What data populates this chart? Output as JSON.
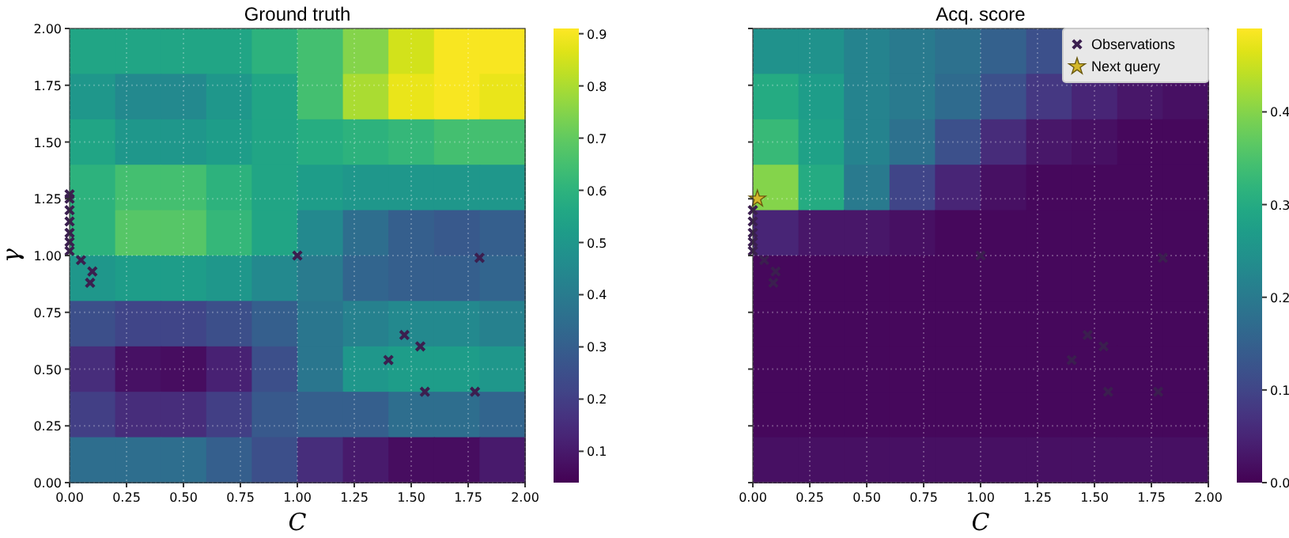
{
  "chart_data": [
    {
      "type": "heatmap",
      "title": "Ground truth",
      "xlabel": "C",
      "ylabel": "γ",
      "xlim": [
        0,
        2
      ],
      "ylim": [
        0,
        2
      ],
      "xticks": [
        {
          "value": 0,
          "label": "0.00"
        },
        {
          "value": 0.25,
          "label": "0.25"
        },
        {
          "value": 0.5,
          "label": "0.50"
        },
        {
          "value": 0.75,
          "label": "0.75"
        },
        {
          "value": 1,
          "label": "1.00"
        },
        {
          "value": 1.25,
          "label": "1.25"
        },
        {
          "value": 1.5,
          "label": "1.50"
        },
        {
          "value": 1.75,
          "label": "1.75"
        },
        {
          "value": 2,
          "label": "2.00"
        }
      ],
      "yticks": [
        {
          "value": 0,
          "label": "0.00"
        },
        {
          "value": 0.25,
          "label": "0.25"
        },
        {
          "value": 0.5,
          "label": "0.50"
        },
        {
          "value": 0.75,
          "label": "0.75"
        },
        {
          "value": 1,
          "label": "1.00"
        },
        {
          "value": 1.25,
          "label": "1.25"
        },
        {
          "value": 1.5,
          "label": "1.50"
        },
        {
          "value": 1.75,
          "label": "1.75"
        },
        {
          "value": 2,
          "label": "2.00"
        }
      ],
      "grid": true,
      "clim": [
        0.04,
        0.91
      ],
      "cticks": [
        0.1,
        0.2,
        0.3,
        0.4,
        0.5,
        0.6,
        0.7,
        0.8,
        0.9
      ],
      "cells": [
        [
          0.55,
          0.55,
          0.55,
          0.55,
          0.6,
          0.65,
          0.75,
          0.85,
          0.9,
          0.9
        ],
        [
          0.5,
          0.45,
          0.45,
          0.5,
          0.55,
          0.65,
          0.8,
          0.88,
          0.9,
          0.88
        ],
        [
          0.55,
          0.5,
          0.5,
          0.52,
          0.55,
          0.58,
          0.6,
          0.62,
          0.65,
          0.65
        ],
        [
          0.6,
          0.65,
          0.65,
          0.6,
          0.55,
          0.52,
          0.5,
          0.5,
          0.5,
          0.5
        ],
        [
          0.6,
          0.68,
          0.68,
          0.62,
          0.55,
          0.45,
          0.35,
          0.3,
          0.28,
          0.3
        ],
        [
          0.5,
          0.52,
          0.52,
          0.5,
          0.45,
          0.4,
          0.32,
          0.3,
          0.3,
          0.32
        ],
        [
          0.25,
          0.22,
          0.22,
          0.25,
          0.3,
          0.38,
          0.42,
          0.45,
          0.45,
          0.42
        ],
        [
          0.15,
          0.08,
          0.07,
          0.12,
          0.25,
          0.38,
          0.5,
          0.52,
          0.52,
          0.5
        ],
        [
          0.2,
          0.15,
          0.15,
          0.2,
          0.28,
          0.3,
          0.3,
          0.35,
          0.35,
          0.32
        ],
        [
          0.35,
          0.35,
          0.35,
          0.3,
          0.25,
          0.15,
          0.1,
          0.07,
          0.07,
          0.1
        ]
      ],
      "series": [
        {
          "type": "scatter",
          "marker": "cross",
          "color": "#3b1f4f",
          "x": [
            0,
            0,
            0,
            0,
            0,
            0,
            0,
            0.05,
            0.1,
            0.09,
            1,
            1.8,
            1.47,
            1.54,
            1.4,
            1.56,
            1.78
          ],
          "values": [
            1.02,
            1.06,
            1.1,
            1.15,
            1.2,
            1.25,
            1.27,
            0.98,
            0.93,
            0.88,
            1,
            0.99,
            0.65,
            0.6,
            0.54,
            0.4,
            0.4
          ]
        }
      ]
    },
    {
      "type": "heatmap",
      "title": "Acq. score",
      "xlabel": "C",
      "ylim": [
        0,
        2
      ],
      "xlim": [
        0,
        2
      ],
      "tick_labels": "x",
      "xticks": [
        {
          "value": 0,
          "label": "0.00"
        },
        {
          "value": 0.25,
          "label": "0.25"
        },
        {
          "value": 0.5,
          "label": "0.50"
        },
        {
          "value": 0.75,
          "label": "0.75"
        },
        {
          "value": 1,
          "label": "1.00"
        },
        {
          "value": 1.25,
          "label": "1.25"
        },
        {
          "value": 1.5,
          "label": "1.50"
        },
        {
          "value": 1.75,
          "label": "1.75"
        },
        {
          "value": 2,
          "label": "2.00"
        }
      ],
      "yticks": [
        {
          "value": 0,
          "label": null
        },
        {
          "value": 0.25,
          "label": null
        },
        {
          "value": 0.5,
          "label": null
        },
        {
          "value": 0.75,
          "label": null
        },
        {
          "value": 1,
          "label": null
        },
        {
          "value": 1.25,
          "label": null
        },
        {
          "value": 1.5,
          "label": null
        },
        {
          "value": 1.75,
          "label": null
        },
        {
          "value": 2,
          "label": null
        }
      ],
      "grid": true,
      "legend": "top right",
      "clim": [
        0,
        0.49
      ],
      "cticks": [
        {
          "value": 0,
          "label": "0.0"
        },
        {
          "value": 0.1,
          "label": "0.1"
        },
        {
          "value": 0.2,
          "label": "0.2"
        },
        {
          "value": 0.3,
          "label": "0.3"
        },
        {
          "value": 0.4,
          "label": "0.4"
        }
      ],
      "cells": [
        [
          0.25,
          0.25,
          0.22,
          0.2,
          0.18,
          0.15,
          0.12,
          null,
          null,
          null
        ],
        [
          0.3,
          0.27,
          0.22,
          0.2,
          0.17,
          0.12,
          0.08,
          0.05,
          0.03,
          0.02
        ],
        [
          0.33,
          0.28,
          0.22,
          0.18,
          0.12,
          0.06,
          0.03,
          0.02,
          0.01,
          0.01
        ],
        [
          0.4,
          0.3,
          0.2,
          0.1,
          0.05,
          0.02,
          0.01,
          0.01,
          0.01,
          0.01
        ],
        [
          0.05,
          0.03,
          0.03,
          0.02,
          0.01,
          0.01,
          0.01,
          0.01,
          0.01,
          0.01
        ],
        [
          0.01,
          0.01,
          0.01,
          0.01,
          0.01,
          0.01,
          0.01,
          0.01,
          0.01,
          0.01
        ],
        [
          0.01,
          0.01,
          0.01,
          0.01,
          0.01,
          0.01,
          0.01,
          0.01,
          0.01,
          0.01
        ],
        [
          0.01,
          0.01,
          0.01,
          0.01,
          0.01,
          0.01,
          0.01,
          0.01,
          0.01,
          0.01
        ],
        [
          0.01,
          0.01,
          0.01,
          0.01,
          0.01,
          0.01,
          0.01,
          0.01,
          0.01,
          0.01
        ],
        [
          0.02,
          0.02,
          0.02,
          0.02,
          0.02,
          0.02,
          0.02,
          0.02,
          0.02,
          0.02
        ]
      ],
      "series": [
        {
          "type": "scatter",
          "name": "Observations",
          "marker": "cross",
          "color": "#3b1f4f",
          "x": [
            0,
            0,
            0,
            0,
            0,
            0.05,
            0.1,
            0.09,
            1,
            1.8,
            1.47,
            1.54,
            1.4,
            1.56,
            1.78
          ],
          "values": [
            1.02,
            1.06,
            1.1,
            1.15,
            1.2,
            0.98,
            0.93,
            0.88,
            1,
            0.99,
            0.65,
            0.6,
            0.54,
            0.4,
            0.4
          ]
        },
        {
          "type": "scatter",
          "name": "Next query",
          "marker": "star",
          "color": "#d4b82a",
          "x": [
            0.02
          ],
          "values": [
            1.25
          ]
        }
      ]
    }
  ]
}
